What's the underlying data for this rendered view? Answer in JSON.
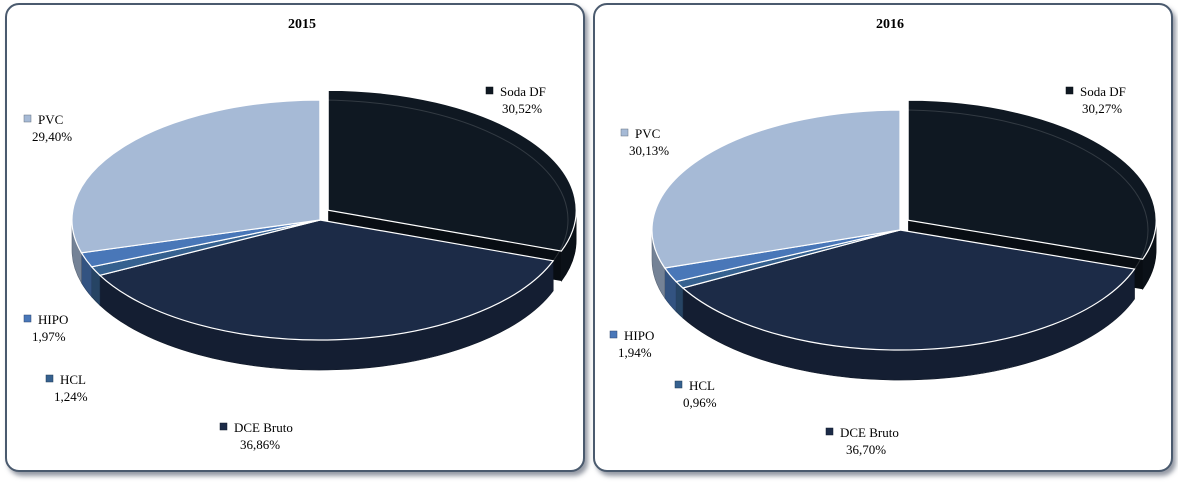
{
  "colors": {
    "Soda DF": "#0f1822",
    "DCE Bruto": "#1c2b47",
    "HCL": "#36618f",
    "HIPO": "#4977b8",
    "PVC": "#a6bad6"
  },
  "chart_data": [
    {
      "type": "pie",
      "title": "2015",
      "slices": [
        {
          "label": "Soda DF",
          "value": "30,52%",
          "pct": 30.52
        },
        {
          "label": "DCE Bruto",
          "value": "36,86%",
          "pct": 36.86
        },
        {
          "label": "HCL",
          "value": "1,24%",
          "pct": 1.24
        },
        {
          "label": "HIPO",
          "value": "1,97%",
          "pct": 1.97
        },
        {
          "label": "PVC",
          "value": "29,40%",
          "pct": 29.4
        }
      ],
      "exploded": "Soda DF"
    },
    {
      "type": "pie",
      "title": "2016",
      "slices": [
        {
          "label": "Soda DF",
          "value": "30,27%",
          "pct": 30.27
        },
        {
          "label": "DCE Bruto",
          "value": "36,70%",
          "pct": 36.7
        },
        {
          "label": "HCL",
          "value": "0,96%",
          "pct": 0.96
        },
        {
          "label": "HIPO",
          "value": "1,94%",
          "pct": 1.94
        },
        {
          "label": "PVC",
          "value": "30,13%",
          "pct": 30.13
        }
      ],
      "exploded": "Soda DF"
    }
  ]
}
